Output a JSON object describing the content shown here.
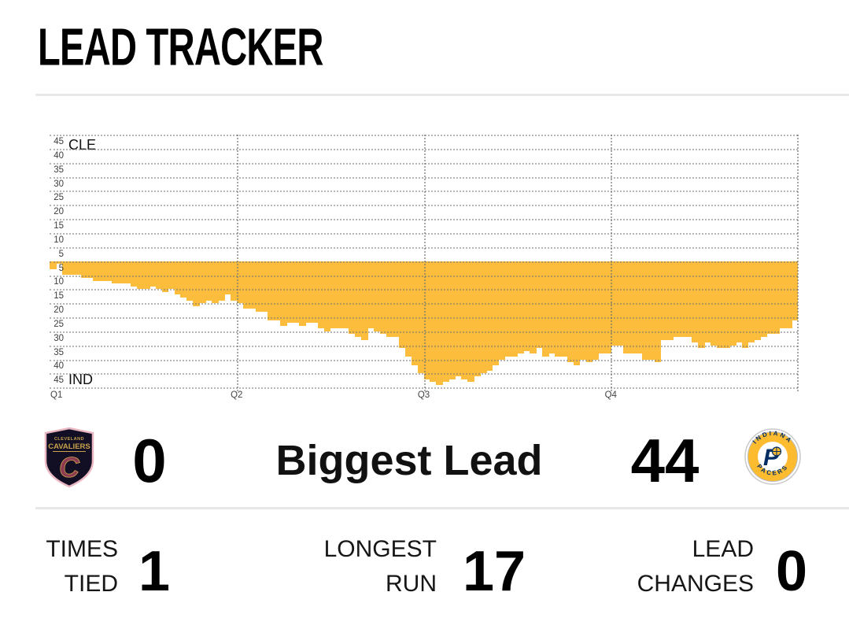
{
  "title": "LEAD TRACKER",
  "chart_data": {
    "type": "area",
    "title": "Lead Tracker margin chart",
    "teams": {
      "top": "CLE",
      "bottom": "IND"
    },
    "y_axis": {
      "top_labels": [
        45,
        40,
        35,
        30,
        25,
        20,
        15,
        10,
        5
      ],
      "bottom_labels": [
        5,
        10,
        15,
        20,
        25,
        30,
        35,
        40,
        45
      ],
      "unit_per_gridline": 5,
      "max": 45,
      "grid": "dotted"
    },
    "x_axis": {
      "labels": [
        "Q1",
        "Q2",
        "Q3",
        "Q4"
      ]
    },
    "series_name": "IND lead (points, below zero line)",
    "values": [
      3,
      1,
      5,
      5,
      5,
      6,
      6,
      7,
      7,
      7,
      8,
      8,
      8,
      9,
      10,
      10,
      9,
      10,
      11,
      10,
      12,
      13,
      14,
      16,
      15,
      14,
      15,
      14,
      12,
      14,
      15,
      17,
      17,
      18,
      18,
      21,
      21,
      23,
      22,
      22,
      23,
      22,
      22,
      24,
      25,
      24,
      24,
      24,
      26,
      27,
      28,
      24,
      25,
      26,
      27,
      27,
      31,
      34,
      37,
      40,
      42,
      43,
      44,
      43,
      42,
      41,
      42,
      43,
      41,
      40,
      39,
      37,
      35,
      34,
      34,
      33,
      32,
      33,
      31,
      34,
      33,
      34,
      34,
      36,
      37,
      35,
      36,
      35,
      33,
      33,
      30,
      30,
      33,
      33,
      33,
      35,
      35,
      36,
      28,
      28,
      27,
      27,
      27,
      29,
      31,
      29,
      30,
      31,
      31,
      30,
      29,
      31,
      29,
      28,
      27,
      26,
      26,
      24,
      24,
      21
    ],
    "bar_color": "#FCBD3C"
  },
  "biggest_lead": {
    "label": "Biggest Lead",
    "cle_value": "0",
    "ind_value": "44"
  },
  "stats": [
    {
      "line1": "TIMES",
      "line2": "TIED",
      "value": "1"
    },
    {
      "line1": "LONGEST",
      "line2": "RUN",
      "value": "17"
    },
    {
      "line1": "LEAD",
      "line2": "CHANGES",
      "value": "0"
    }
  ],
  "logos": {
    "cavaliers": {
      "city": "CLEVELAND",
      "name": "CAVALIERS",
      "letter": "C"
    },
    "pacers": {
      "city": "INDIANA",
      "name": "PACERS",
      "letter": "P"
    }
  },
  "colors": {
    "bar_gold": "#FCBD3C",
    "pacers_gold": "#FDBB30",
    "pacers_navy": "#002D62",
    "cavs_wine": "#8E3A52",
    "cavs_gold": "#C9A24B",
    "divider_gray": "#E8E8E8"
  }
}
